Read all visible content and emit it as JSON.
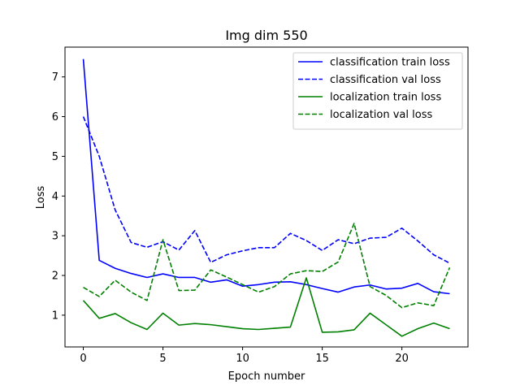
{
  "chart_data": {
    "type": "line",
    "title": "Img dim 550",
    "xlabel": "Epoch number",
    "ylabel": "Loss",
    "xlim": [
      -1.15,
      24.15
    ],
    "ylim": [
      0.2,
      7.75
    ],
    "xticks": [
      0,
      5,
      10,
      15,
      20
    ],
    "yticks": [
      1,
      2,
      3,
      4,
      5,
      6,
      7
    ],
    "grid": false,
    "legend_position": "top-right",
    "x": [
      0,
      1,
      2,
      3,
      4,
      5,
      6,
      7,
      8,
      9,
      10,
      11,
      12,
      13,
      14,
      15,
      16,
      17,
      18,
      19,
      20,
      21,
      22,
      23
    ],
    "series": [
      {
        "name": "classification train loss",
        "color": "#0000ff",
        "dash": "solid",
        "values": [
          7.45,
          2.38,
          2.18,
          2.05,
          1.95,
          2.04,
          1.95,
          1.95,
          1.83,
          1.89,
          1.73,
          1.77,
          1.83,
          1.84,
          1.77,
          1.67,
          1.58,
          1.71,
          1.76,
          1.66,
          1.68,
          1.8,
          1.59,
          1.54
        ]
      },
      {
        "name": "classification val loss",
        "color": "#0000ff",
        "dash": "dashed",
        "values": [
          6.0,
          5.0,
          3.65,
          2.83,
          2.71,
          2.85,
          2.64,
          3.13,
          2.33,
          2.52,
          2.62,
          2.7,
          2.7,
          3.06,
          2.88,
          2.63,
          2.9,
          2.8,
          2.94,
          2.96,
          3.19,
          2.87,
          2.52,
          2.31
        ]
      },
      {
        "name": "localization train loss",
        "color": "#008000",
        "dash": "solid",
        "values": [
          1.37,
          0.92,
          1.04,
          0.81,
          0.64,
          1.05,
          0.75,
          0.79,
          0.76,
          0.71,
          0.66,
          0.64,
          0.67,
          0.7,
          1.94,
          0.57,
          0.58,
          0.63,
          1.05,
          0.76,
          0.47,
          0.66,
          0.8,
          0.66
        ]
      },
      {
        "name": "localization val loss",
        "color": "#008000",
        "dash": "dashed",
        "values": [
          1.7,
          1.47,
          1.88,
          1.58,
          1.37,
          2.9,
          1.62,
          1.63,
          2.14,
          1.96,
          1.77,
          1.58,
          1.72,
          2.04,
          2.12,
          2.1,
          2.34,
          3.31,
          1.72,
          1.5,
          1.19,
          1.31,
          1.24,
          2.2
        ]
      }
    ]
  }
}
